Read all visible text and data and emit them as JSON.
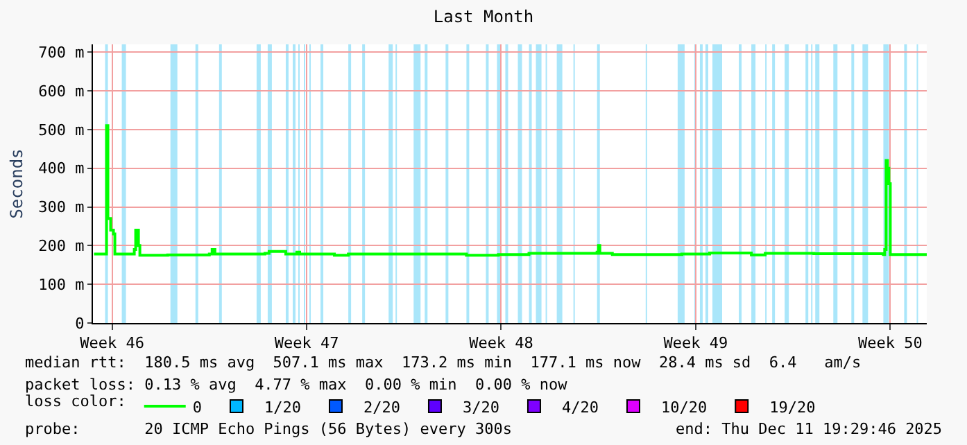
{
  "chart_data": {
    "type": "line",
    "title": "Last Month",
    "ylabel": "Seconds",
    "legend_title": "loss color:",
    "xlim": [
      "2025-11-11T19:30",
      "2025-12-11T19:30"
    ],
    "xticks": [
      {
        "value": "2025-11-12T12:00",
        "label": "Week 46"
      },
      {
        "value": "2025-11-19T12:00",
        "label": "Week 47"
      },
      {
        "value": "2025-11-26T12:00",
        "label": "Week 48"
      },
      {
        "value": "2025-12-03T12:00",
        "label": "Week 49"
      },
      {
        "value": "2025-12-10T12:00",
        "label": "Week 50"
      }
    ],
    "ylim": [
      0,
      720
    ],
    "yticks": [
      0,
      {
        "value": 100,
        "label": "100 m"
      },
      {
        "value": 200,
        "label": "200 m"
      },
      {
        "value": 300,
        "label": "300 m"
      },
      {
        "value": 400,
        "label": "400 m"
      },
      {
        "value": 500,
        "label": "500 m"
      },
      {
        "value": 600,
        "label": "600 m"
      },
      {
        "value": 700,
        "label": "700 m"
      }
    ],
    "grid": true,
    "legend": "bottom",
    "series": [
      {
        "name": "0",
        "color": "#00ff00",
        "x": [
          "2025-11-11T20:24",
          "2025-11-12T04:48",
          "2025-11-12T06:00",
          "2025-11-12T07:12",
          "2025-11-12T08:24",
          "2025-11-12T10:48",
          "2025-11-12T13:12",
          "2025-11-12T14:24",
          "2025-11-13T06:00",
          "2025-11-13T07:12",
          "2025-11-13T08:24",
          "2025-11-13T10:48",
          "2025-11-13T12:00",
          "2025-11-14T12:00",
          "2025-11-16T00:00",
          "2025-11-16T02:24",
          "2025-11-16T04:48",
          "2025-11-18T00:00",
          "2025-11-18T03:36",
          "2025-11-18T15:36",
          "2025-11-18T18:00",
          "2025-11-19T00:00",
          "2025-11-19T03:36",
          "2025-11-19T06:00",
          "2025-11-20T02:24",
          "2025-11-20T12:00",
          "2025-11-21T00:00",
          "2025-11-25T00:00",
          "2025-11-25T06:00",
          "2025-11-26T06:00",
          "2025-11-26T09:36",
          "2025-11-27T12:00",
          "2025-11-29T22:48",
          "2025-11-30T00:00",
          "2025-11-30T01:12",
          "2025-11-30T12:00",
          "2025-12-03T00:00",
          "2025-12-03T12:00",
          "2025-12-04T00:00",
          "2025-12-05T12:00",
          "2025-12-06T00:00",
          "2025-12-07T18:00",
          "2025-12-10T06:00",
          "2025-12-10T07:12",
          "2025-12-10T08:24",
          "2025-12-10T09:36",
          "2025-12-10T10:48",
          "2025-12-10T12:00",
          "2025-12-11T19:30"
        ],
        "values": [
          178,
          178,
          178,
          510,
          270,
          240,
          230,
          178,
          178,
          190,
          240,
          200,
          175,
          176,
          178,
          190,
          178,
          180,
          185,
          185,
          178,
          178,
          183,
          178,
          178,
          175,
          178,
          178,
          175,
          175,
          177,
          180,
          183,
          200,
          180,
          177,
          178,
          178,
          181,
          176,
          180,
          179,
          177,
          190,
          420,
          400,
          360,
          177,
          177
        ]
      },
      {
        "name": "1/20",
        "color": "#00b8ff"
      },
      {
        "name": "2/20",
        "color": "#0059ff"
      },
      {
        "name": "3/20",
        "color": "#5e00ff"
      },
      {
        "name": "4/20",
        "color": "#7e00ff"
      },
      {
        "name": "10/20",
        "color": "#dd00ff"
      },
      {
        "name": "19/20",
        "color": "#ff0000"
      }
    ],
    "bands": [
      {
        "axis": "x",
        "from": "2025-11-12T06:00",
        "to": "2025-11-12T08:24",
        "color": "#aae6fa"
      },
      {
        "axis": "x",
        "from": "2025-11-12T20:24",
        "to": "2025-11-13T00:00",
        "color": "#aae6fa"
      },
      {
        "axis": "x",
        "from": "2025-11-14T14:24",
        "to": "2025-11-14T20:24",
        "color": "#aae6fa"
      },
      {
        "axis": "x",
        "from": "2025-11-15T12:00",
        "to": "2025-11-15T14:24",
        "color": "#aae6fa"
      },
      {
        "axis": "x",
        "from": "2025-11-16T08:24",
        "to": "2025-11-16T10:48",
        "color": "#aae6fa"
      },
      {
        "axis": "x",
        "from": "2025-11-17T16:48",
        "to": "2025-11-17T20:24",
        "color": "#aae6fa"
      },
      {
        "axis": "x",
        "from": "2025-11-18T02:24",
        "to": "2025-11-18T06:00",
        "color": "#aae6fa"
      },
      {
        "axis": "x",
        "from": "2025-11-18T18:00",
        "to": "2025-11-18T20:24",
        "color": "#aae6fa"
      },
      {
        "axis": "x",
        "from": "2025-11-19T00:00",
        "to": "2025-11-19T02:24",
        "color": "#aae6fa"
      },
      {
        "axis": "x",
        "from": "2025-11-19T04:48",
        "to": "2025-11-19T06:00",
        "color": "#aae6fa"
      },
      {
        "axis": "x",
        "from": "2025-11-19T09:36",
        "to": "2025-11-19T10:48",
        "color": "#aae6fa"
      },
      {
        "axis": "x",
        "from": "2025-11-19T14:24",
        "to": "2025-11-19T15:36",
        "color": "#aae6fa"
      },
      {
        "axis": "x",
        "from": "2025-11-20T00:00",
        "to": "2025-11-20T02:24",
        "color": "#aae6fa"
      },
      {
        "axis": "x",
        "from": "2025-11-21T00:00",
        "to": "2025-11-21T02:24",
        "color": "#aae6fa"
      },
      {
        "axis": "x",
        "from": "2025-11-21T12:00",
        "to": "2025-11-21T14:24",
        "color": "#aae6fa"
      },
      {
        "axis": "x",
        "from": "2025-11-22T10:48",
        "to": "2025-11-22T14:24",
        "color": "#aae6fa"
      },
      {
        "axis": "x",
        "from": "2025-11-22T16:48",
        "to": "2025-11-22T18:00",
        "color": "#aae6fa"
      },
      {
        "axis": "x",
        "from": "2025-11-23T08:24",
        "to": "2025-11-23T14:24",
        "color": "#aae6fa"
      },
      {
        "axis": "x",
        "from": "2025-11-23T18:00",
        "to": "2025-11-23T20:24",
        "color": "#aae6fa"
      },
      {
        "axis": "x",
        "from": "2025-11-24T12:00",
        "to": "2025-11-24T14:24",
        "color": "#aae6fa"
      },
      {
        "axis": "x",
        "from": "2025-11-25T06:00",
        "to": "2025-11-25T08:24",
        "color": "#aae6fa"
      },
      {
        "axis": "x",
        "from": "2025-11-25T22:48",
        "to": "2025-11-26T01:12",
        "color": "#aae6fa"
      },
      {
        "axis": "x",
        "from": "2025-11-26T08:24",
        "to": "2025-11-26T12:00",
        "color": "#aae6fa"
      },
      {
        "axis": "x",
        "from": "2025-11-26T15:36",
        "to": "2025-11-26T18:00",
        "color": "#aae6fa"
      },
      {
        "axis": "x",
        "from": "2025-11-27T02:24",
        "to": "2025-11-27T06:00",
        "color": "#aae6fa"
      },
      {
        "axis": "x",
        "from": "2025-11-27T12:00",
        "to": "2025-11-27T14:24",
        "color": "#aae6fa"
      },
      {
        "axis": "x",
        "from": "2025-11-27T18:00",
        "to": "2025-11-27T22:48",
        "color": "#aae6fa"
      },
      {
        "axis": "x",
        "from": "2025-11-28T02:24",
        "to": "2025-11-28T03:36",
        "color": "#aae6fa"
      },
      {
        "axis": "x",
        "from": "2025-11-28T12:00",
        "to": "2025-11-28T16:48",
        "color": "#aae6fa"
      },
      {
        "axis": "x",
        "from": "2025-11-29T02:24",
        "to": "2025-11-29T03:36",
        "color": "#aae6fa"
      },
      {
        "axis": "x",
        "from": "2025-11-29T22:48",
        "to": "2025-11-30T01:12",
        "color": "#aae6fa"
      },
      {
        "axis": "x",
        "from": "2025-12-01T16:48",
        "to": "2025-12-01T18:00",
        "color": "#aae6fa"
      },
      {
        "axis": "x",
        "from": "2025-12-02T20:24",
        "to": "2025-12-03T02:24",
        "color": "#aae6fa"
      },
      {
        "axis": "x",
        "from": "2025-12-03T10:48",
        "to": "2025-12-03T12:00",
        "color": "#aae6fa"
      },
      {
        "axis": "x",
        "from": "2025-12-03T15:36",
        "to": "2025-12-03T18:00",
        "color": "#aae6fa"
      },
      {
        "axis": "x",
        "from": "2025-12-03T20:24",
        "to": "2025-12-03T22:48",
        "color": "#aae6fa"
      },
      {
        "axis": "x",
        "from": "2025-12-04T02:24",
        "to": "2025-12-04T10:48",
        "color": "#aae6fa"
      },
      {
        "axis": "x",
        "from": "2025-12-05T01:12",
        "to": "2025-12-05T03:36",
        "color": "#aae6fa"
      },
      {
        "axis": "x",
        "from": "2025-12-05T12:00",
        "to": "2025-12-05T15:36",
        "color": "#aae6fa"
      },
      {
        "axis": "x",
        "from": "2025-12-06T00:00",
        "to": "2025-12-06T01:12",
        "color": "#aae6fa"
      },
      {
        "axis": "x",
        "from": "2025-12-06T06:00",
        "to": "2025-12-06T08:24",
        "color": "#aae6fa"
      },
      {
        "axis": "x",
        "from": "2025-12-06T16:48",
        "to": "2025-12-06T20:24",
        "color": "#aae6fa"
      },
      {
        "axis": "x",
        "from": "2025-12-07T10:48",
        "to": "2025-12-07T13:12",
        "color": "#aae6fa"
      },
      {
        "axis": "x",
        "from": "2025-12-07T15:36",
        "to": "2025-12-07T16:48",
        "color": "#aae6fa"
      },
      {
        "axis": "x",
        "from": "2025-12-07T19:12",
        "to": "2025-12-07T22:48",
        "color": "#aae6fa"
      },
      {
        "axis": "x",
        "from": "2025-12-08T10:48",
        "to": "2025-12-08T14:24",
        "color": "#aae6fa"
      },
      {
        "axis": "x",
        "from": "2025-12-09T02:24",
        "to": "2025-12-09T04:48",
        "color": "#aae6fa"
      },
      {
        "axis": "x",
        "from": "2025-12-09T12:00",
        "to": "2025-12-09T16:48",
        "color": "#aae6fa"
      },
      {
        "axis": "x",
        "from": "2025-12-10T06:00",
        "to": "2025-12-10T10:48",
        "color": "#aae6fa"
      },
      {
        "axis": "x",
        "from": "2025-12-11T00:00",
        "to": "2025-12-11T02:24",
        "color": "#aae6fa"
      },
      {
        "axis": "x",
        "from": "2025-12-11T10:48",
        "to": "2025-12-11T12:00",
        "color": "#aae6fa"
      }
    ],
    "annotations": [
      "median rtt:  180.5 ms avg  507.1 ms max  173.2 ms min  177.1 ms now  28.4 ms sd  6.4   am/s",
      "packet loss: 0.13 % avg  4.77 % max  0.00 % min  0.00 % now",
      "probe:       20 ICMP Echo Pings (56 Bytes) every 300s",
      "end: Thu Dec 11 19:29:46 2025"
    ]
  }
}
